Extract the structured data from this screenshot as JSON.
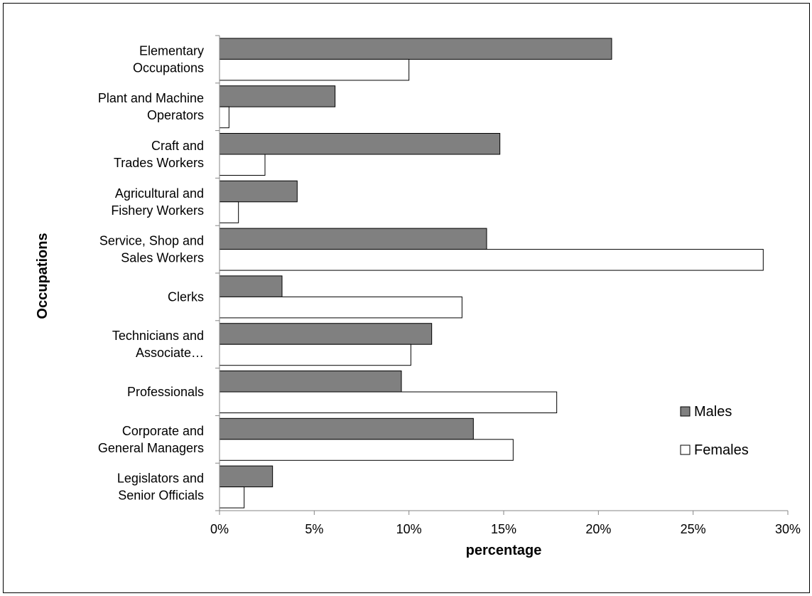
{
  "chart_data": {
    "type": "bar",
    "orientation": "horizontal",
    "title": "",
    "xlabel": "percentage",
    "ylabel": "Occupations",
    "xlim": [
      0,
      30
    ],
    "x_ticks": [
      "0%",
      "5%",
      "10%",
      "15%",
      "20%",
      "25%",
      "30%"
    ],
    "grid": false,
    "legend_position": "right",
    "categories": [
      {
        "lines": [
          "Elementary",
          "Occupations"
        ]
      },
      {
        "lines": [
          "Plant and Machine",
          "Operators"
        ]
      },
      {
        "lines": [
          "Craft and",
          "Trades Workers"
        ]
      },
      {
        "lines": [
          "Agricultural and",
          "Fishery Workers"
        ]
      },
      {
        "lines": [
          "Service, Shop and",
          "Sales Workers"
        ]
      },
      {
        "lines": [
          "Clerks"
        ]
      },
      {
        "lines": [
          "Technicians and",
          "Associate…"
        ]
      },
      {
        "lines": [
          "Professionals"
        ]
      },
      {
        "lines": [
          "Corporate and",
          "General Managers"
        ]
      },
      {
        "lines": [
          "Legislators and",
          "Senior Officials"
        ]
      }
    ],
    "series": [
      {
        "name": "Males",
        "color": "#808080",
        "values": [
          20.7,
          6.1,
          14.8,
          4.1,
          14.1,
          3.3,
          11.2,
          9.6,
          13.4,
          2.8
        ]
      },
      {
        "name": "Females",
        "color": "#ffffff",
        "values": [
          10.0,
          0.5,
          2.4,
          1.0,
          28.7,
          12.8,
          10.1,
          17.8,
          15.5,
          1.3
        ]
      }
    ]
  }
}
